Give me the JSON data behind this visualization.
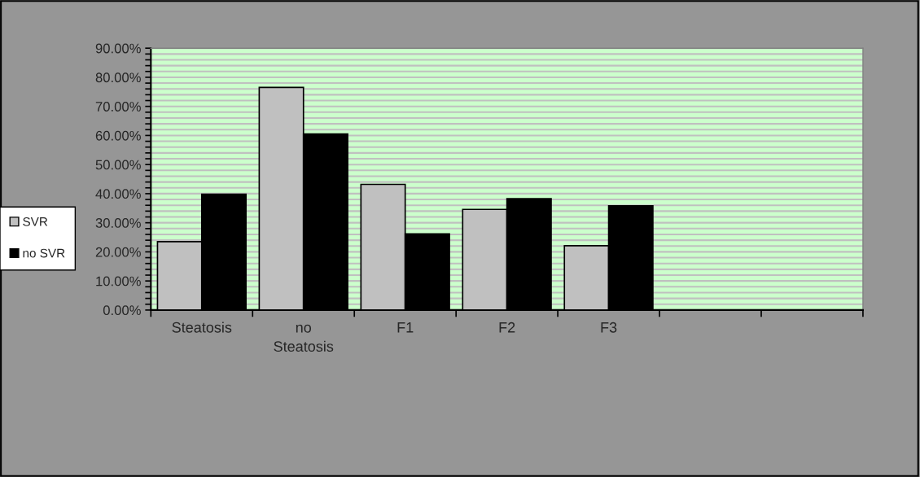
{
  "chart_data": {
    "type": "bar",
    "categories": [
      "Steatosis",
      "no\nSteatosis",
      "F1",
      "F2",
      "F3",
      null,
      null
    ],
    "series": [
      {
        "name": "SVR",
        "color": "#c0c0c0",
        "values": [
          23.5,
          76.5,
          43.2,
          34.6,
          22.1,
          null,
          null
        ]
      },
      {
        "name": "no SVR",
        "color": "#000000",
        "values": [
          39.8,
          60.5,
          26.2,
          38.3,
          35.8,
          null,
          null
        ]
      }
    ],
    "ylim": [
      0,
      90
    ],
    "yticks": [
      {
        "value": 0,
        "label": "0.00%"
      },
      {
        "value": 2,
        "label": null
      },
      {
        "value": 4,
        "label": null
      },
      {
        "value": 6,
        "label": null
      },
      {
        "value": 8,
        "label": null
      },
      {
        "value": 10,
        "label": "10.00%"
      },
      {
        "value": 12,
        "label": null
      },
      {
        "value": 14,
        "label": null
      },
      {
        "value": 16,
        "label": null
      },
      {
        "value": 18,
        "label": null
      },
      {
        "value": 20,
        "label": "20.00%"
      },
      {
        "value": 22,
        "label": null
      },
      {
        "value": 24,
        "label": null
      },
      {
        "value": 26,
        "label": null
      },
      {
        "value": 28,
        "label": null
      },
      {
        "value": 30,
        "label": "30.00%"
      },
      {
        "value": 32,
        "label": null
      },
      {
        "value": 34,
        "label": null
      },
      {
        "value": 36,
        "label": null
      },
      {
        "value": 38,
        "label": null
      },
      {
        "value": 40,
        "label": "40.00%"
      },
      {
        "value": 42,
        "label": null
      },
      {
        "value": 44,
        "label": null
      },
      {
        "value": 46,
        "label": null
      },
      {
        "value": 48,
        "label": null
      },
      {
        "value": 50,
        "label": "50.00%"
      },
      {
        "value": 52,
        "label": null
      },
      {
        "value": 54,
        "label": null
      },
      {
        "value": 56,
        "label": null
      },
      {
        "value": 58,
        "label": null
      },
      {
        "value": 60,
        "label": "60.00%"
      },
      {
        "value": 62,
        "label": null
      },
      {
        "value": 64,
        "label": null
      },
      {
        "value": 66,
        "label": null
      },
      {
        "value": 68,
        "label": null
      },
      {
        "value": 70,
        "label": "70.00%"
      },
      {
        "value": 72,
        "label": null
      },
      {
        "value": 74,
        "label": null
      },
      {
        "value": 76,
        "label": null
      },
      {
        "value": 78,
        "label": null
      },
      {
        "value": 80,
        "label": "80.00%"
      },
      {
        "value": 82,
        "label": null
      },
      {
        "value": 84,
        "label": null
      },
      {
        "value": 86,
        "label": null
      },
      {
        "value": 88,
        "label": null
      },
      {
        "value": 90,
        "label": "90.00%"
      }
    ],
    "grid": "y",
    "legend": "left"
  }
}
